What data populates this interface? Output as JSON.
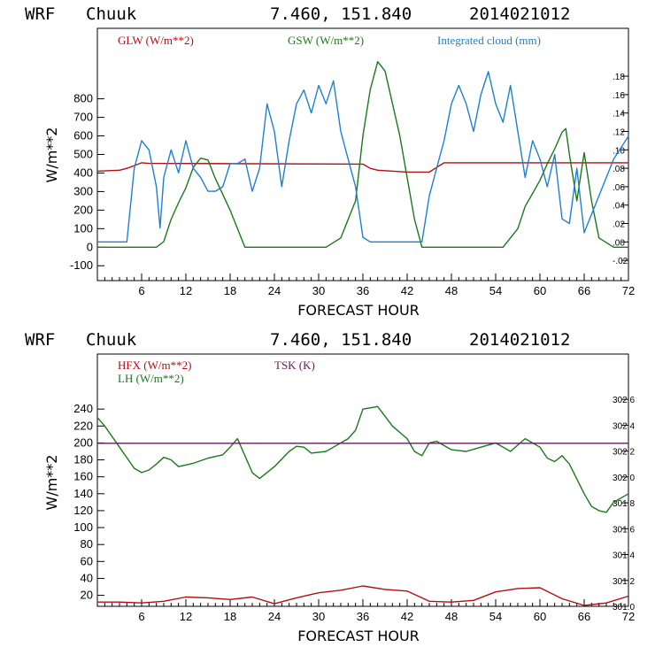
{
  "chart_data": [
    {
      "type": "line",
      "title": {
        "model": "WRF",
        "station": "Chuuk",
        "coords": "7.460, 151.840",
        "init": "2014021012"
      },
      "xlabel": "FORECAST HOUR",
      "ylabel": "W/m**2",
      "xlim": [
        0,
        72
      ],
      "ylim": [
        -180,
        1180
      ],
      "y2lim": [
        -0.042,
        0.232
      ],
      "xticks": [
        6,
        12,
        18,
        24,
        30,
        36,
        42,
        48,
        54,
        60,
        66,
        72
      ],
      "yticks": [
        -100,
        0,
        100,
        200,
        300,
        400,
        500,
        600,
        700,
        800
      ],
      "y2ticks": [
        -0.02,
        0.0,
        0.02,
        0.04,
        0.06,
        0.08,
        0.1,
        0.12,
        0.14,
        0.16,
        0.18
      ],
      "y2tick_labels": [
        "-.02",
        ".00",
        ".02",
        ".04",
        ".06",
        ".08",
        ".10",
        ".12",
        ".14",
        ".16",
        ".18"
      ],
      "series": [
        {
          "name": "GLW (W/m**2)",
          "color": "#b01010",
          "axis": "left",
          "x": [
            0,
            3,
            4,
            5,
            6,
            7,
            36,
            37,
            38,
            42,
            45,
            46,
            47,
            66,
            67,
            72
          ],
          "y": [
            410,
            415,
            425,
            440,
            455,
            452,
            448,
            425,
            415,
            405,
            405,
            430,
            455,
            455,
            455,
            455
          ]
        },
        {
          "name": "GSW (W/m**2)",
          "color": "#1a7a1a",
          "axis": "left",
          "x": [
            0,
            8,
            9,
            10,
            11,
            12,
            13,
            14,
            15,
            16,
            18,
            20,
            31,
            33,
            35,
            36,
            37,
            38,
            39,
            41,
            43,
            44,
            55,
            57,
            58,
            59,
            60,
            61,
            62,
            63,
            63.5,
            64,
            65,
            66,
            67,
            68,
            70,
            72
          ],
          "y": [
            0,
            0,
            30,
            150,
            240,
            320,
            430,
            480,
            470,
            370,
            200,
            0,
            0,
            50,
            250,
            600,
            850,
            1000,
            950,
            600,
            150,
            0,
            0,
            100,
            220,
            290,
            360,
            450,
            530,
            620,
            640,
            500,
            250,
            510,
            250,
            50,
            0,
            0
          ]
        },
        {
          "name": "Integrated cloud (mm)",
          "color": "#1f7fd4",
          "axis": "right",
          "x": [
            0,
            4,
            5,
            6,
            7,
            8,
            8.5,
            9,
            10,
            11,
            12,
            13,
            14,
            15,
            16,
            17,
            18,
            19,
            20,
            21,
            22,
            23,
            24,
            25,
            26,
            27,
            28,
            29,
            30,
            31,
            32,
            33,
            34,
            35,
            36,
            37,
            44,
            45,
            46,
            47,
            48,
            49,
            50,
            51,
            52,
            53,
            54,
            55,
            56,
            57,
            58,
            59,
            60,
            61,
            62,
            63,
            64,
            65,
            66,
            67,
            68,
            70,
            72
          ],
          "y": [
            0.0,
            0.0,
            0.08,
            0.11,
            0.1,
            0.06,
            0.015,
            0.07,
            0.1,
            0.075,
            0.11,
            0.08,
            0.07,
            0.055,
            0.055,
            0.06,
            0.085,
            0.085,
            0.09,
            0.055,
            0.08,
            0.15,
            0.12,
            0.06,
            0.11,
            0.15,
            0.165,
            0.14,
            0.17,
            0.15,
            0.175,
            0.12,
            0.09,
            0.06,
            0.005,
            0.0,
            0.0,
            0.05,
            0.08,
            0.11,
            0.15,
            0.17,
            0.15,
            0.12,
            0.16,
            0.185,
            0.15,
            0.13,
            0.17,
            0.12,
            0.07,
            0.11,
            0.09,
            0.06,
            0.095,
            0.025,
            0.02,
            0.08,
            0.01,
            0.03,
            0.05,
            0.09,
            0.115
          ]
        }
      ]
    },
    {
      "type": "line",
      "title": {
        "model": "WRF",
        "station": "Chuuk",
        "coords": "7.460, 151.840",
        "init": "2014021012"
      },
      "xlabel": "FORECAST HOUR",
      "ylabel": "W/m**2",
      "xlim": [
        0,
        72
      ],
      "ylim": [
        7,
        305
      ],
      "y2lim": [
        301.0,
        302.95
      ],
      "xticks": [
        6,
        12,
        18,
        24,
        30,
        36,
        42,
        48,
        54,
        60,
        66,
        72
      ],
      "yticks": [
        20,
        40,
        60,
        80,
        100,
        120,
        140,
        160,
        180,
        200,
        220,
        240
      ],
      "y2ticks": [
        301.0,
        301.2,
        301.4,
        301.6,
        301.8,
        302.0,
        302.2,
        302.4,
        302.6
      ],
      "y2tick_labels": [
        "301.0",
        "301.2",
        "301.4",
        "301.6",
        "301.8",
        "302.0",
        "302.2",
        "302.4",
        "302.6"
      ],
      "series": [
        {
          "name": "HFX (W/m**2)",
          "color": "#b01010",
          "axis": "left",
          "x": [
            0,
            3,
            6,
            9,
            12,
            15,
            18,
            21,
            24,
            27,
            30,
            33,
            36,
            39,
            42,
            45,
            48,
            51,
            54,
            57,
            60,
            63,
            66,
            69,
            72
          ],
          "y": [
            12,
            12,
            11,
            13,
            18,
            17,
            15,
            18,
            10,
            17,
            23,
            26,
            31,
            27,
            25,
            13,
            12,
            14,
            24,
            28,
            29,
            16,
            8,
            11,
            19
          ]
        },
        {
          "name": "LH (W/m**2)",
          "color": "#1a7a1a",
          "axis": "left",
          "x": [
            0,
            1,
            3,
            5,
            6,
            7,
            8,
            9,
            10,
            11,
            13,
            15,
            17,
            18,
            19,
            20,
            21,
            22,
            24,
            26,
            27,
            28,
            29,
            31,
            33,
            34,
            35,
            36,
            38,
            40,
            42,
            43,
            44,
            45,
            46,
            48,
            50,
            52,
            54,
            56,
            58,
            60,
            61,
            62,
            63,
            64,
            66,
            67,
            68,
            69,
            70,
            72
          ],
          "y": [
            230,
            220,
            195,
            170,
            165,
            168,
            175,
            183,
            180,
            172,
            176,
            182,
            186,
            195,
            205,
            185,
            165,
            158,
            172,
            190,
            196,
            195,
            188,
            190,
            200,
            205,
            215,
            240,
            243,
            220,
            205,
            190,
            185,
            200,
            202,
            192,
            190,
            195,
            200,
            190,
            205,
            195,
            182,
            178,
            185,
            175,
            140,
            125,
            120,
            118,
            130,
            140
          ]
        },
        {
          "name": "TSK (K)",
          "color": "#6a1a5a",
          "axis": "right",
          "x": [
            0,
            72
          ],
          "y": [
            302.26,
            302.26
          ]
        }
      ]
    }
  ]
}
